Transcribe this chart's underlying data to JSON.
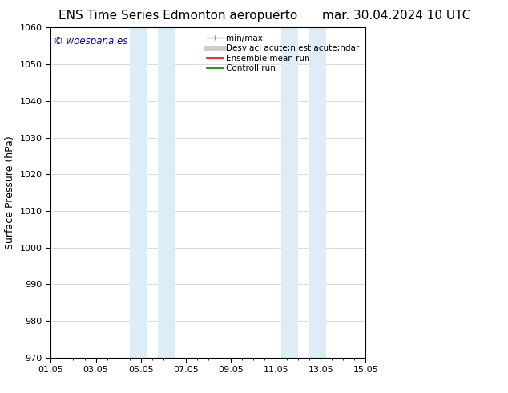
{
  "title_left": "ENS Time Series Edmonton aeropuerto",
  "title_right": "mar. 30.04.2024 10 UTC",
  "ylabel": "Surface Pressure (hPa)",
  "ylim": [
    970,
    1060
  ],
  "yticks": [
    970,
    980,
    990,
    1000,
    1010,
    1020,
    1030,
    1040,
    1050,
    1060
  ],
  "xlim_start": 0,
  "xlim_end": 14,
  "xtick_labels": [
    "01.05",
    "03.05",
    "05.05",
    "07.05",
    "09.05",
    "11.05",
    "13.05",
    "15.05"
  ],
  "xtick_positions": [
    0,
    2,
    4,
    6,
    8,
    10,
    12,
    14
  ],
  "shaded_regions": [
    {
      "xstart": 3.5,
      "xend": 4.25,
      "color": "#dcedf8"
    },
    {
      "xstart": 4.75,
      "xend": 5.5,
      "color": "#dcedf8"
    },
    {
      "xstart": 10.25,
      "xend": 11.0,
      "color": "#dcedf8"
    },
    {
      "xstart": 11.5,
      "xend": 12.25,
      "color": "#dcedf8"
    }
  ],
  "watermark_text": "© woespana.es",
  "watermark_color": "#0000cc",
  "legend_label_1": "min/max",
  "legend_label_2": "Desviaci acute;n est acute;ndar",
  "legend_label_3": "Ensemble mean run",
  "legend_label_4": "Controll run",
  "bg_color": "#ffffff",
  "plot_bg_color": "#ffffff",
  "grid_color": "#cccccc",
  "spine_color": "#000000",
  "title_fontsize": 11,
  "tick_fontsize": 8,
  "ylabel_fontsize": 9,
  "legend_fontsize": 7.5,
  "fig_width": 6.34,
  "fig_height": 4.9,
  "dpi": 100
}
